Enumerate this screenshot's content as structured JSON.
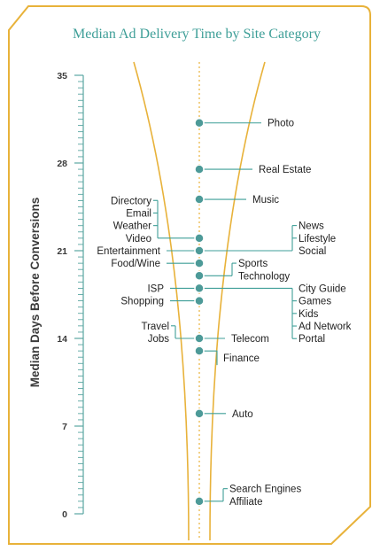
{
  "chart_data": {
    "type": "scatter",
    "title": "Median Ad Delivery Time by Site Category",
    "ylabel": "Median Days Before Conversions",
    "ylim": [
      0,
      35
    ],
    "yticks": [
      0,
      7,
      14,
      21,
      28,
      35
    ],
    "points": [
      {
        "y": 31.2,
        "labels": [
          "Photo"
        ]
      },
      {
        "y": 27.5,
        "labels": [
          "Real Estate"
        ]
      },
      {
        "y": 25.1,
        "labels": [
          "Music"
        ]
      },
      {
        "y": 22.0,
        "labels": [
          "Directory",
          "Email",
          "Weather",
          "Video"
        ]
      },
      {
        "y": 21.0,
        "labels": [
          "News",
          "Lifestyle",
          "Social"
        ]
      },
      {
        "y": 21.0,
        "labels": [
          "Entertainment"
        ]
      },
      {
        "y": 20.0,
        "labels": [
          "Food/Wine"
        ]
      },
      {
        "y": 19.0,
        "labels": [
          "Sports",
          "Technology"
        ]
      },
      {
        "y": 18.0,
        "labels": [
          "City Guide",
          "Games",
          "Kids",
          "Ad Network",
          "Portal"
        ]
      },
      {
        "y": 18.0,
        "labels": [
          "ISP"
        ]
      },
      {
        "y": 17.0,
        "labels": [
          "Shopping"
        ]
      },
      {
        "y": 14.0,
        "labels": [
          "Travel",
          "Jobs"
        ]
      },
      {
        "y": 14.0,
        "labels": [
          "Telecom"
        ]
      },
      {
        "y": 13.0,
        "labels": [
          "Finance"
        ]
      },
      {
        "y": 8.0,
        "labels": [
          "Auto"
        ]
      },
      {
        "y": 1.0,
        "labels": [
          "Search Engines",
          "Affiliate"
        ]
      }
    ]
  },
  "colors": {
    "frame": "#e8b23a",
    "title": "#3f9f98",
    "axis": "#5aa6a2",
    "point": "#4d9a98",
    "connector": "#3f9f98"
  }
}
